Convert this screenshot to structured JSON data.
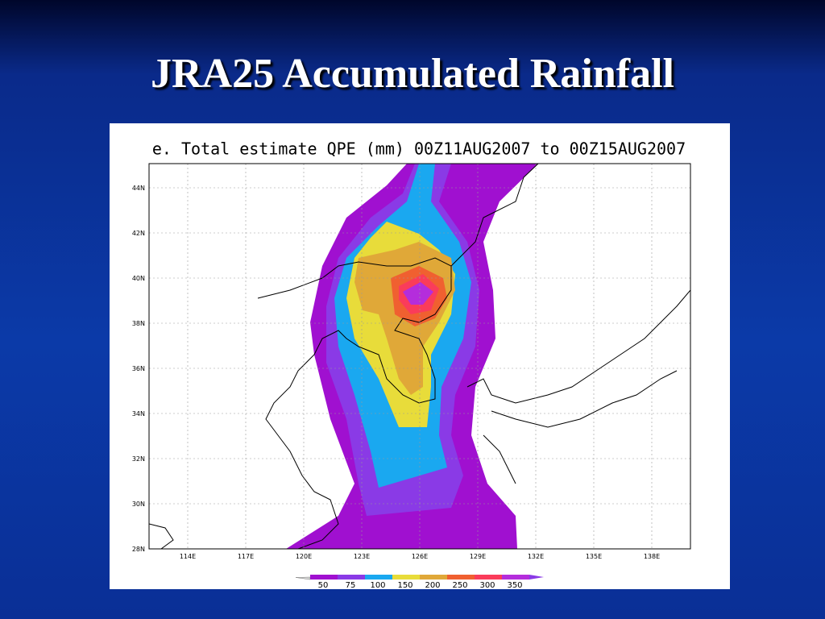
{
  "slide": {
    "title": "JRA25 Accumulated Rainfall"
  },
  "map": {
    "title": "e. Total estimate QPE (mm) 00Z11AUG2007 to 00Z15AUG2007",
    "lat_labels": [
      "44N",
      "42N",
      "40N",
      "38N",
      "36N",
      "34N",
      "32N",
      "30N",
      "28N"
    ],
    "lon_labels": [
      "114E",
      "117E",
      "120E",
      "123E",
      "126E",
      "129E",
      "132E",
      "135E",
      "138E"
    ],
    "colorbar_labels": [
      50,
      75,
      100,
      150,
      200,
      250,
      300,
      350
    ]
  }
}
